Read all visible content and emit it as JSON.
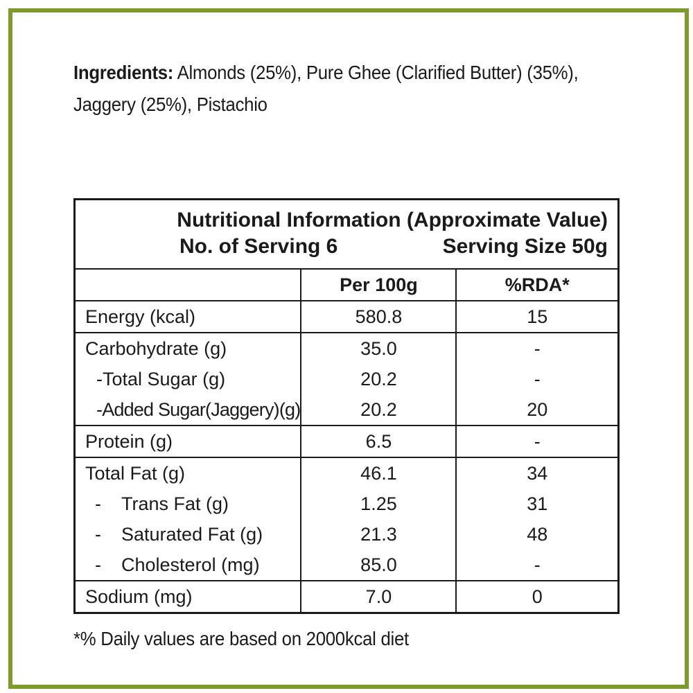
{
  "ingredients": {
    "label": "Ingredients:",
    "line1": " Almonds (25%), Pure Ghee (Clarified Butter) (35%),",
    "line2": "Jaggery (25%), Pistachio"
  },
  "table": {
    "title": "Nutritional Information (Approximate Value)",
    "servings": "No. of Serving 6",
    "serving_size": "Serving Size 50g",
    "col_per100": "Per 100g",
    "col_rda": "%RDA*",
    "groups": [
      {
        "rows": [
          {
            "name": "Energy (kcal)",
            "value": "580.8",
            "rda": "15"
          }
        ]
      },
      {
        "rows": [
          {
            "name": "Carbohydrate (g)",
            "value": "35.0",
            "rda": "-"
          },
          {
            "name": "-Total Sugar (g)",
            "value": "20.2",
            "rda": "-"
          },
          {
            "name": "-Added Sugar(Jaggery)(g)",
            "value": "20.2",
            "rda": "20"
          }
        ]
      },
      {
        "rows": [
          {
            "name": "Protein (g)",
            "value": "6.5",
            "rda": "-"
          }
        ]
      },
      {
        "rows": [
          {
            "name": "Total Fat (g)",
            "value": "46.1",
            "rda": "34"
          },
          {
            "dash": "-",
            "name": "Trans Fat (g)",
            "value": "1.25",
            "rda": "31"
          },
          {
            "dash": "-",
            "name": "Saturated Fat (g)",
            "value": "21.3",
            "rda": "48"
          },
          {
            "dash": "-",
            "name": "Cholesterol (mg)",
            "value": "85.0",
            "rda": "-"
          }
        ]
      },
      {
        "rows": [
          {
            "name": "Sodium (mg)",
            "value": "7.0",
            "rda": "0"
          }
        ]
      }
    ]
  },
  "footnote": "*% Daily values are based on 2000kcal diet",
  "colors": {
    "border_green": "#7e9a2e",
    "text": "#1a1a1a"
  }
}
